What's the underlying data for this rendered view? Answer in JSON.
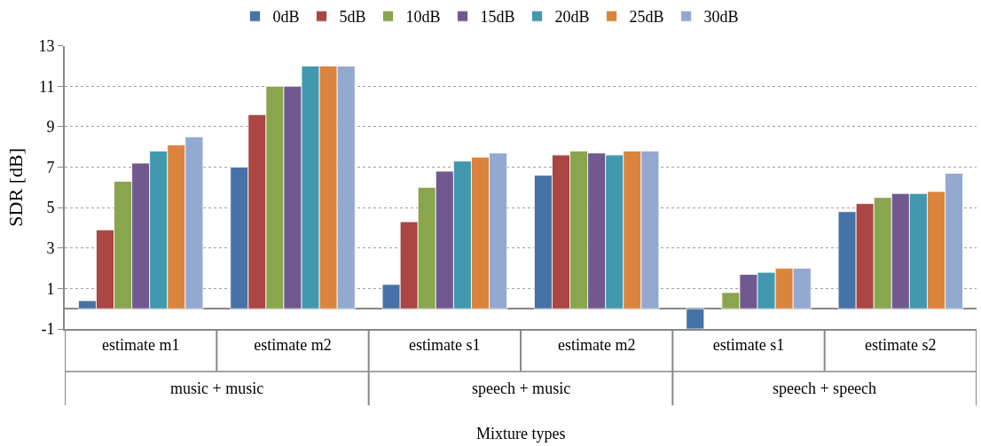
{
  "chart_data": {
    "type": "bar",
    "xlabel": "Mixture types",
    "ylabel": "SDR [dB]",
    "categories": [
      "estimate m1",
      "estimate m2",
      "estimate s1",
      "estimate m2",
      "estimate s1",
      "estimate s2"
    ],
    "annotations": [
      "music + music",
      "speech + music",
      "speech + speech"
    ],
    "series": [
      {
        "name": "0dB",
        "color": "#4572a7",
        "values": [
          0.4,
          7.0,
          1.2,
          6.6,
          -1.0,
          4.8
        ]
      },
      {
        "name": "5dB",
        "color": "#aa4643",
        "values": [
          3.9,
          9.6,
          4.3,
          7.6,
          null,
          5.2
        ]
      },
      {
        "name": "10dB",
        "color": "#89a54e",
        "values": [
          6.3,
          11.0,
          6.0,
          7.8,
          0.8,
          5.5
        ]
      },
      {
        "name": "15dB",
        "color": "#71588f",
        "values": [
          7.2,
          11.0,
          6.8,
          7.7,
          1.7,
          5.7
        ]
      },
      {
        "name": "20dB",
        "color": "#4198af",
        "values": [
          7.8,
          12.0,
          7.3,
          7.6,
          1.8,
          5.7
        ]
      },
      {
        "name": "25dB",
        "color": "#db843d",
        "values": [
          8.1,
          12.0,
          7.5,
          7.8,
          2.0,
          5.8
        ]
      },
      {
        "name": "30dB",
        "color": "#93a9cf",
        "values": [
          8.5,
          12.0,
          7.7,
          7.8,
          2.0,
          6.7
        ]
      }
    ],
    "ylim": [
      -1,
      13
    ],
    "yticks": [
      -1,
      1,
      3,
      5,
      7,
      9,
      11,
      13
    ],
    "grid": "y",
    "legend": "top"
  }
}
